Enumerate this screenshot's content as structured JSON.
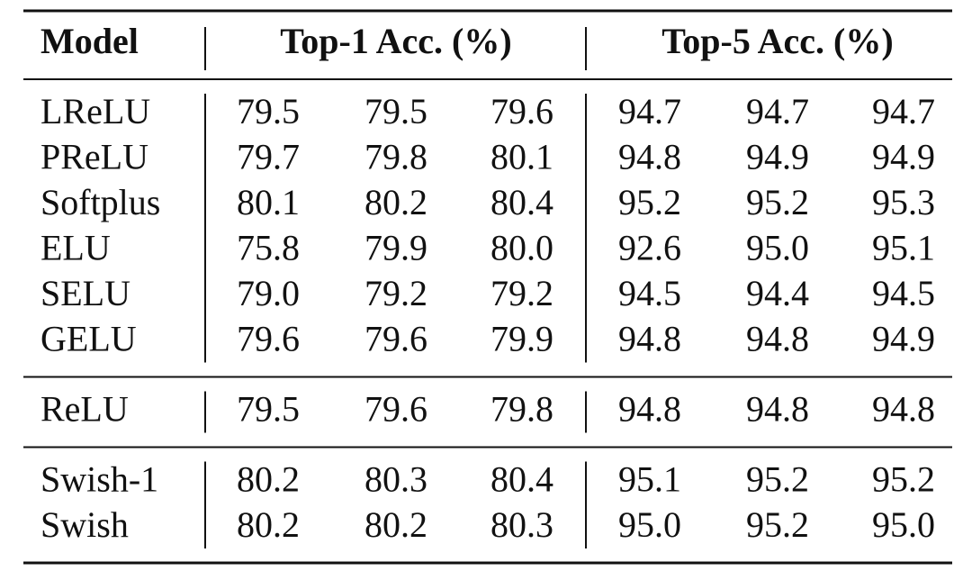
{
  "table": {
    "columns": [
      "Model",
      "Top-1 Acc. (%)",
      "Top-5 Acc. (%)"
    ],
    "groups": [
      [
        [
          "LReLU",
          "79.5",
          "79.5",
          "79.6",
          "94.7",
          "94.7",
          "94.7"
        ],
        [
          "PReLU",
          "79.7",
          "79.8",
          "80.1",
          "94.8",
          "94.9",
          "94.9"
        ],
        [
          "Softplus",
          "80.1",
          "80.2",
          "80.4",
          "95.2",
          "95.2",
          "95.3"
        ],
        [
          "ELU",
          "75.8",
          "79.9",
          "80.0",
          "92.6",
          "95.0",
          "95.1"
        ],
        [
          "SELU",
          "79.0",
          "79.2",
          "79.2",
          "94.5",
          "94.4",
          "94.5"
        ],
        [
          "GELU",
          "79.6",
          "79.6",
          "79.9",
          "94.8",
          "94.8",
          "94.9"
        ]
      ],
      [
        [
          "ReLU",
          "79.5",
          "79.6",
          "79.8",
          "94.8",
          "94.8",
          "94.8"
        ]
      ],
      [
        [
          "Swish-1",
          "80.2",
          "80.3",
          "80.4",
          "95.1",
          "95.2",
          "95.2"
        ],
        [
          "Swish",
          "80.2",
          "80.2",
          "80.3",
          "95.0",
          "95.2",
          "95.0"
        ]
      ]
    ]
  }
}
